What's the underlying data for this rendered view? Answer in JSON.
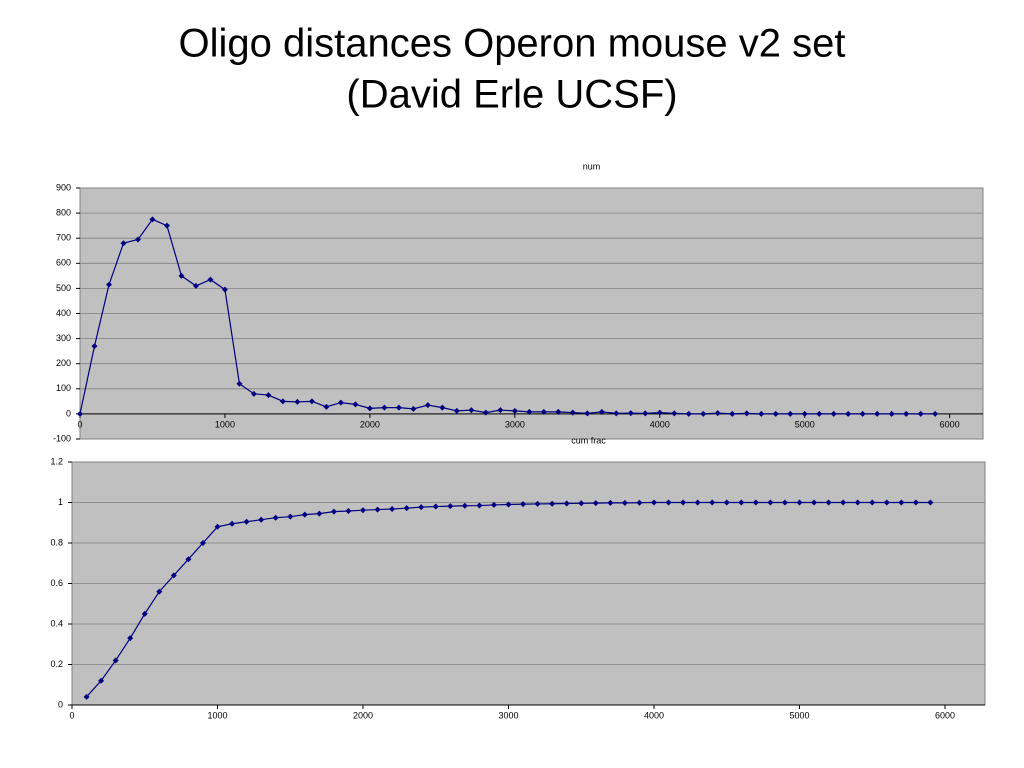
{
  "title": [
    "Oligo distances Operon mouse v2 set",
    "(David Erle UCSF)"
  ],
  "chart_data": [
    {
      "type": "line",
      "title": "num",
      "color": "#000080",
      "grid": true,
      "x": [
        0,
        100,
        200,
        300,
        400,
        500,
        600,
        700,
        800,
        900,
        1000,
        1100,
        1200,
        1300,
        1400,
        1500,
        1600,
        1700,
        1800,
        1900,
        2000,
        2100,
        2200,
        2300,
        2400,
        2500,
        2600,
        2700,
        2800,
        2900,
        3000,
        3100,
        3200,
        3300,
        3400,
        3500,
        3600,
        3700,
        3800,
        3900,
        4000,
        4100,
        4200,
        4300,
        4400,
        4500,
        4600,
        4700,
        4800,
        4900,
        5000,
        5100,
        5200,
        5300,
        5400,
        5500,
        5600,
        5700,
        5800,
        5900
      ],
      "series": [
        {
          "name": "num",
          "color": "#000080",
          "values": [
            0,
            270,
            515,
            680,
            695,
            775,
            750,
            550,
            510,
            535,
            495,
            120,
            80,
            75,
            50,
            48,
            50,
            28,
            45,
            38,
            22,
            25,
            25,
            20,
            35,
            25,
            12,
            15,
            5,
            15,
            12,
            8,
            8,
            8,
            5,
            2,
            8,
            2,
            3,
            2,
            5,
            2,
            0,
            0,
            3,
            0,
            2,
            0,
            0,
            0,
            0,
            0,
            0,
            0,
            0,
            0,
            0,
            0,
            0,
            0
          ]
        }
      ],
      "xlim": [
        0,
        6230
      ],
      "xticks": [
        0,
        1000,
        2000,
        3000,
        4000,
        5000,
        6000
      ],
      "ylim": [
        -100,
        900
      ],
      "yticks": [
        -100,
        0,
        100,
        200,
        300,
        400,
        500,
        600,
        700,
        800,
        900
      ]
    },
    {
      "type": "line",
      "title": "cum frac",
      "color": "#000080",
      "grid": true,
      "x": [
        100,
        200,
        300,
        400,
        500,
        600,
        700,
        800,
        900,
        1000,
        1100,
        1200,
        1300,
        1400,
        1500,
        1600,
        1700,
        1800,
        1900,
        2000,
        2100,
        2200,
        2300,
        2400,
        2500,
        2600,
        2700,
        2800,
        2900,
        3000,
        3100,
        3200,
        3300,
        3400,
        3500,
        3600,
        3700,
        3800,
        3900,
        4000,
        4100,
        4200,
        4300,
        4400,
        4500,
        4600,
        4700,
        4800,
        4900,
        5000,
        5100,
        5200,
        5300,
        5400,
        5500,
        5600,
        5700,
        5800,
        5900
      ],
      "series": [
        {
          "name": "cum frac",
          "color": "#000080",
          "values": [
            0.04,
            0.12,
            0.22,
            0.33,
            0.45,
            0.56,
            0.64,
            0.72,
            0.8,
            0.88,
            0.895,
            0.905,
            0.915,
            0.925,
            0.93,
            0.94,
            0.945,
            0.955,
            0.958,
            0.962,
            0.965,
            0.968,
            0.972,
            0.977,
            0.98,
            0.982,
            0.984,
            0.985,
            0.988,
            0.99,
            0.992,
            0.993,
            0.994,
            0.995,
            0.996,
            0.997,
            0.998,
            0.998,
            0.999,
            1,
            1,
            1,
            1,
            1,
            1,
            1,
            1,
            1,
            1,
            1,
            1,
            1,
            1,
            1,
            1,
            1,
            1,
            1,
            1
          ]
        }
      ],
      "xlim": [
        0,
        6275
      ],
      "xticks": [
        0,
        1000,
        2000,
        3000,
        4000,
        5000,
        6000
      ],
      "ylim": [
        0,
        1.2
      ],
      "yticks": [
        0,
        0.2,
        0.4,
        0.6,
        0.8,
        1,
        1.2
      ]
    }
  ]
}
